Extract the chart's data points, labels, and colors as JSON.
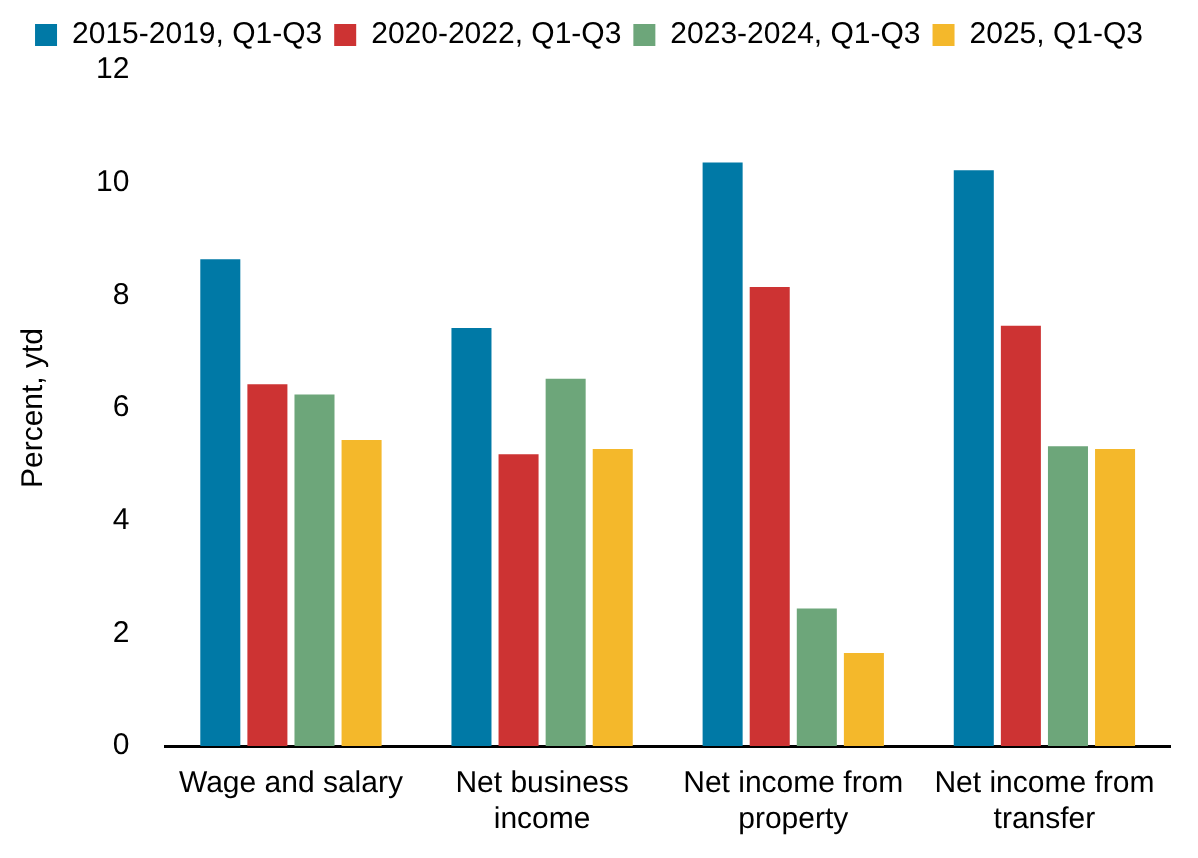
{
  "chart_data": {
    "type": "bar",
    "ylabel": "Percent, ytd",
    "categories": [
      "Wage and salary",
      "Net business income",
      "Net income from property",
      "Net income from transfer"
    ],
    "series": [
      {
        "name": "2015-2019, Q1-Q3",
        "color": "#0079a6",
        "values": [
          8.64,
          7.42,
          10.36,
          10.22
        ]
      },
      {
        "name": "2020-2022, Q1-Q3",
        "color": "#cd3333",
        "values": [
          6.42,
          5.18,
          8.15,
          7.46
        ]
      },
      {
        "name": "2023-2024, Q1-Q3",
        "color": "#6da67a",
        "values": [
          6.24,
          6.52,
          2.44,
          5.32
        ]
      },
      {
        "name": "2025, Q1-Q3",
        "color": "#f4b82b",
        "values": [
          5.43,
          5.27,
          1.65,
          5.27
        ]
      }
    ],
    "ylim": [
      0,
      12
    ],
    "yticks": [
      0,
      2,
      4,
      6,
      8,
      10,
      12
    ],
    "grid": false,
    "legend": "top"
  }
}
